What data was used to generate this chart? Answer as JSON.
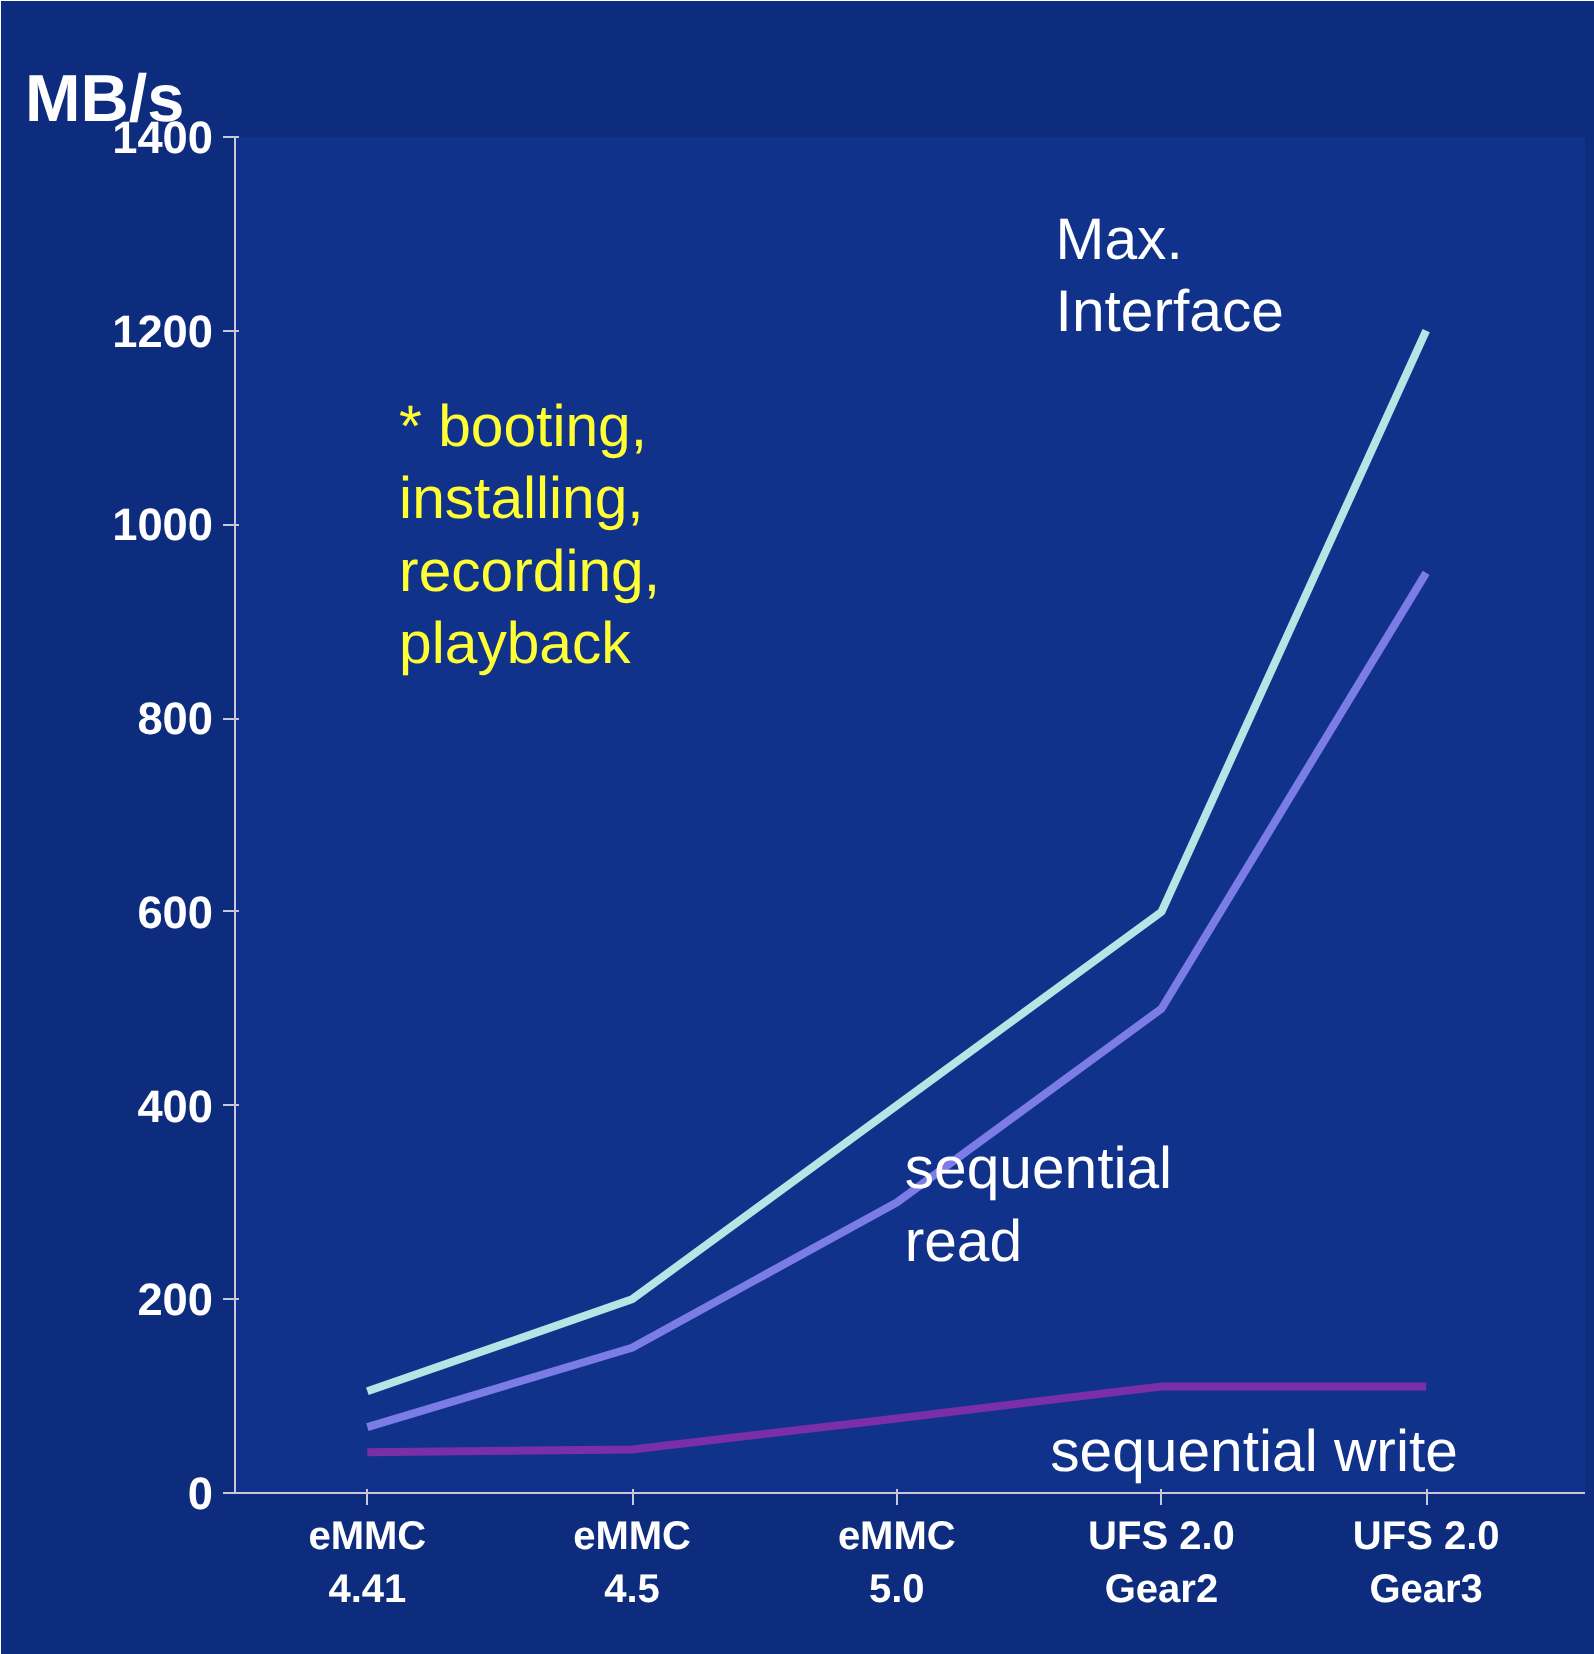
{
  "chart_data": {
    "type": "line",
    "ylabel": "MB/s",
    "categories": [
      "eMMC\n4.41",
      "eMMC\n4.5",
      "eMMC\n5.0",
      "UFS 2.0\nGear2",
      "UFS 2.0\nGear3"
    ],
    "series": [
      {
        "name": "Max.\nInterface",
        "color": "#b4e6e6",
        "values": [
          105,
          200,
          400,
          600,
          1200
        ]
      },
      {
        "name": "sequential\nread",
        "color": "#7c7ce6",
        "values": [
          68,
          150,
          300,
          500,
          950
        ]
      },
      {
        "name": "sequential write",
        "color": "#7a2fa8",
        "values": [
          42,
          45,
          77,
          110,
          110
        ]
      }
    ],
    "ylim": [
      0,
      1400
    ],
    "yticks": [
      0,
      200,
      400,
      600,
      800,
      1000,
      1200,
      1400
    ],
    "grid": false,
    "marker": "none",
    "line_style": "solid",
    "annotations": [
      "* booting,\ninstalling,\nrecording,\nplayback"
    ]
  }
}
